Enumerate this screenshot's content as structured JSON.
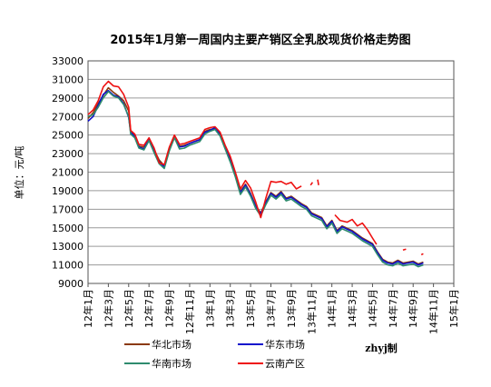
{
  "chart_data": {
    "type": "line",
    "title": "2015年1月第一周国内主要产销区全乳胶现货价格走势图",
    "ylabel": "单位：元/吨",
    "xlabel": "",
    "ylim": [
      9000,
      33000
    ],
    "yticks": [
      9000,
      11000,
      13000,
      15000,
      17000,
      19000,
      21000,
      23000,
      25000,
      27000,
      29000,
      31000,
      33000
    ],
    "xlim": [
      0,
      36
    ],
    "xticks": [
      "12年1月",
      "12年3月",
      "12年5月",
      "12年7月",
      "12年9月",
      "12年11月",
      "13年1月",
      "13年3月",
      "13年5月",
      "13年7月",
      "13年9月",
      "13年11月",
      "14年1月",
      "14年3月",
      "14年5月",
      "14年7月",
      "14年9月",
      "14年11月",
      "15年1月"
    ],
    "grid": "horizontal",
    "legend_position": "bottom",
    "annotation": "zhyj制",
    "series": [
      {
        "name": "华北市场",
        "color": "#8B3A0E",
        "points": [
          [
            0,
            26800
          ],
          [
            0.5,
            27400
          ],
          [
            1,
            28400
          ],
          [
            1.5,
            29300
          ],
          [
            2,
            30100
          ],
          [
            2.5,
            29600
          ],
          [
            3,
            29200
          ],
          [
            3.5,
            28700
          ],
          [
            4,
            27600
          ],
          [
            4.2,
            25400
          ],
          [
            4.6,
            25000
          ],
          [
            5,
            23800
          ],
          [
            5.5,
            23700
          ],
          [
            6,
            24600
          ],
          [
            6.5,
            23400
          ],
          [
            7,
            22300
          ],
          [
            7.5,
            21700
          ],
          [
            8,
            23500
          ],
          [
            8.5,
            24900
          ],
          [
            9,
            23800
          ],
          [
            9.5,
            23900
          ],
          [
            10,
            24100
          ],
          [
            10.5,
            24300
          ],
          [
            11,
            24500
          ],
          [
            11.5,
            25400
          ],
          [
            12,
            25600
          ],
          [
            12.5,
            25700
          ],
          [
            13,
            25200
          ],
          [
            13.5,
            23800
          ],
          [
            14,
            22500
          ],
          [
            14.5,
            20800
          ],
          [
            15,
            18900
          ],
          [
            15.5,
            19700
          ],
          [
            16,
            18700
          ],
          [
            16.5,
            17400
          ],
          [
            17,
            16600
          ],
          [
            17.5,
            17800
          ],
          [
            18,
            18800
          ],
          [
            18.5,
            18400
          ],
          [
            19,
            18900
          ],
          [
            19.5,
            18200
          ],
          [
            20,
            18400
          ],
          [
            20.5,
            18000
          ],
          [
            21,
            17600
          ],
          [
            21.5,
            17300
          ],
          [
            22,
            16600
          ],
          [
            23,
            16100
          ],
          [
            23.5,
            15200
          ],
          [
            24,
            15800
          ],
          [
            24.5,
            14700
          ],
          [
            25,
            15200
          ],
          [
            26,
            14700
          ],
          [
            27,
            13900
          ],
          [
            28,
            13300
          ],
          [
            28.5,
            12400
          ],
          [
            29,
            11600
          ],
          [
            29.5,
            11300
          ],
          [
            30,
            11200
          ],
          [
            30.5,
            11500
          ],
          [
            31,
            11200
          ],
          [
            31.5,
            11300
          ],
          [
            32,
            11400
          ],
          [
            32.5,
            11100
          ],
          [
            33,
            11300
          ]
        ]
      },
      {
        "name": "华东市场",
        "color": "#1010CC",
        "points": [
          [
            0,
            26500
          ],
          [
            0.5,
            27000
          ],
          [
            1,
            28200
          ],
          [
            1.5,
            29400
          ],
          [
            2,
            29800
          ],
          [
            2.5,
            29300
          ],
          [
            3,
            29100
          ],
          [
            3.5,
            28400
          ],
          [
            4,
            26900
          ],
          [
            4.2,
            25300
          ],
          [
            4.6,
            24800
          ],
          [
            5,
            23700
          ],
          [
            5.5,
            23500
          ],
          [
            6,
            24600
          ],
          [
            6.5,
            23300
          ],
          [
            7,
            22100
          ],
          [
            7.5,
            21600
          ],
          [
            8,
            23500
          ],
          [
            8.5,
            24900
          ],
          [
            9,
            23700
          ],
          [
            9.5,
            23800
          ],
          [
            10,
            24100
          ],
          [
            10.5,
            24300
          ],
          [
            11,
            24500
          ],
          [
            11.5,
            25300
          ],
          [
            12,
            25500
          ],
          [
            12.5,
            25800
          ],
          [
            13,
            25000
          ],
          [
            13.5,
            23700
          ],
          [
            14,
            22300
          ],
          [
            14.5,
            20700
          ],
          [
            15,
            18800
          ],
          [
            15.5,
            19600
          ],
          [
            16,
            18600
          ],
          [
            16.5,
            17300
          ],
          [
            17,
            16500
          ],
          [
            17.5,
            17700
          ],
          [
            18,
            18700
          ],
          [
            18.5,
            18300
          ],
          [
            19,
            18800
          ],
          [
            19.5,
            18100
          ],
          [
            20,
            18300
          ],
          [
            20.5,
            17900
          ],
          [
            21,
            17500
          ],
          [
            21.5,
            17200
          ],
          [
            22,
            16500
          ],
          [
            23,
            16000
          ],
          [
            23.5,
            15100
          ],
          [
            24,
            15700
          ],
          [
            24.5,
            14600
          ],
          [
            25,
            15100
          ],
          [
            26,
            14600
          ],
          [
            27,
            13800
          ],
          [
            28,
            13200
          ],
          [
            28.5,
            12300
          ],
          [
            29,
            11500
          ],
          [
            29.5,
            11200
          ],
          [
            30,
            11100
          ],
          [
            30.5,
            11400
          ],
          [
            31,
            11100
          ],
          [
            31.5,
            11200
          ],
          [
            32,
            11300
          ],
          [
            32.5,
            11000
          ],
          [
            33,
            11200
          ]
        ]
      },
      {
        "name": "华南市场",
        "color": "#2E8B6E",
        "points": [
          [
            0,
            27000
          ],
          [
            0.5,
            27200
          ],
          [
            1,
            28000
          ],
          [
            1.5,
            29000
          ],
          [
            2,
            29700
          ],
          [
            2.5,
            29200
          ],
          [
            3,
            29000
          ],
          [
            3.5,
            28300
          ],
          [
            4,
            27000
          ],
          [
            4.2,
            25100
          ],
          [
            4.6,
            24700
          ],
          [
            5,
            23600
          ],
          [
            5.5,
            23400
          ],
          [
            6,
            24400
          ],
          [
            6.5,
            23100
          ],
          [
            7,
            21900
          ],
          [
            7.5,
            21400
          ],
          [
            8,
            23300
          ],
          [
            8.5,
            24700
          ],
          [
            9,
            23500
          ],
          [
            9.5,
            23600
          ],
          [
            10,
            23900
          ],
          [
            10.5,
            24100
          ],
          [
            11,
            24300
          ],
          [
            11.5,
            25100
          ],
          [
            12,
            25400
          ],
          [
            12.5,
            25600
          ],
          [
            13,
            24900
          ],
          [
            13.5,
            23500
          ],
          [
            14,
            22100
          ],
          [
            14.5,
            20500
          ],
          [
            15,
            18600
          ],
          [
            15.5,
            19400
          ],
          [
            16,
            18400
          ],
          [
            16.5,
            17100
          ],
          [
            17,
            16300
          ],
          [
            17.5,
            17500
          ],
          [
            18,
            18500
          ],
          [
            18.5,
            18100
          ],
          [
            19,
            18600
          ],
          [
            19.5,
            17900
          ],
          [
            20,
            18100
          ],
          [
            20.5,
            17700
          ],
          [
            21,
            17300
          ],
          [
            21.5,
            17000
          ],
          [
            22,
            16300
          ],
          [
            23,
            15800
          ],
          [
            23.5,
            14900
          ],
          [
            24,
            15500
          ],
          [
            24.5,
            14400
          ],
          [
            25,
            14900
          ],
          [
            26,
            14400
          ],
          [
            27,
            13600
          ],
          [
            28,
            13000
          ],
          [
            28.5,
            12100
          ],
          [
            29,
            11300
          ],
          [
            29.5,
            11000
          ],
          [
            30,
            10900
          ],
          [
            30.5,
            11200
          ],
          [
            31,
            10900
          ],
          [
            31.5,
            11000
          ],
          [
            32,
            11100
          ],
          [
            32.5,
            10800
          ],
          [
            33,
            11000
          ]
        ]
      },
      {
        "name": "云南产区",
        "color": "#EE1111",
        "segments": [
          [
            [
              0,
              27200
            ],
            [
              0.5,
              27700
            ],
            [
              1,
              28700
            ],
            [
              1.5,
              30200
            ],
            [
              2,
              30800
            ],
            [
              2.5,
              30300
            ],
            [
              3,
              30200
            ],
            [
              3.5,
              29400
            ],
            [
              4,
              28000
            ],
            [
              4.2,
              25500
            ],
            [
              4.6,
              25100
            ],
            [
              5,
              24000
            ],
            [
              5.5,
              23900
            ],
            [
              6,
              24700
            ],
            [
              6.5,
              23600
            ],
            [
              7,
              22000
            ],
            [
              7.5,
              21800
            ],
            [
              8,
              23700
            ],
            [
              8.5,
              25000
            ],
            [
              9,
              24000
            ],
            [
              9.5,
              24100
            ],
            [
              10,
              24300
            ],
            [
              10.5,
              24500
            ],
            [
              11,
              24700
            ],
            [
              11.5,
              25600
            ],
            [
              12,
              25800
            ],
            [
              12.5,
              25900
            ],
            [
              13,
              25300
            ],
            [
              13.5,
              23900
            ],
            [
              14,
              22700
            ],
            [
              14.5,
              21000
            ],
            [
              15,
              19200
            ],
            [
              15.5,
              20100
            ],
            [
              16,
              19300
            ],
            [
              16.5,
              17800
            ],
            [
              17,
              16100
            ],
            [
              17.5,
              18200
            ],
            [
              18,
              20000
            ],
            [
              18.5,
              19900
            ],
            [
              19,
              20000
            ],
            [
              19.5,
              19700
            ],
            [
              20,
              19900
            ],
            [
              20.5,
              19200
            ],
            [
              21,
              19500
            ]
          ],
          [
            [
              21.9,
              19600
            ],
            [
              22.1,
              19900
            ]
          ],
          [
            [
              22.6,
              20200
            ],
            [
              22.7,
              19600
            ]
          ],
          [
            [
              24.3,
              16400
            ],
            [
              24.8,
              15800
            ],
            [
              25.5,
              15600
            ],
            [
              26,
              15900
            ],
            [
              26.5,
              15200
            ],
            [
              27,
              15500
            ],
            [
              27.5,
              14800
            ],
            [
              28,
              13900
            ],
            [
              28.4,
              13200
            ]
          ],
          [
            [
              31.0,
              12600
            ],
            [
              31.3,
              12700
            ]
          ],
          [
            [
              32.8,
              12100
            ],
            [
              33.0,
              12200
            ]
          ]
        ]
      }
    ]
  }
}
